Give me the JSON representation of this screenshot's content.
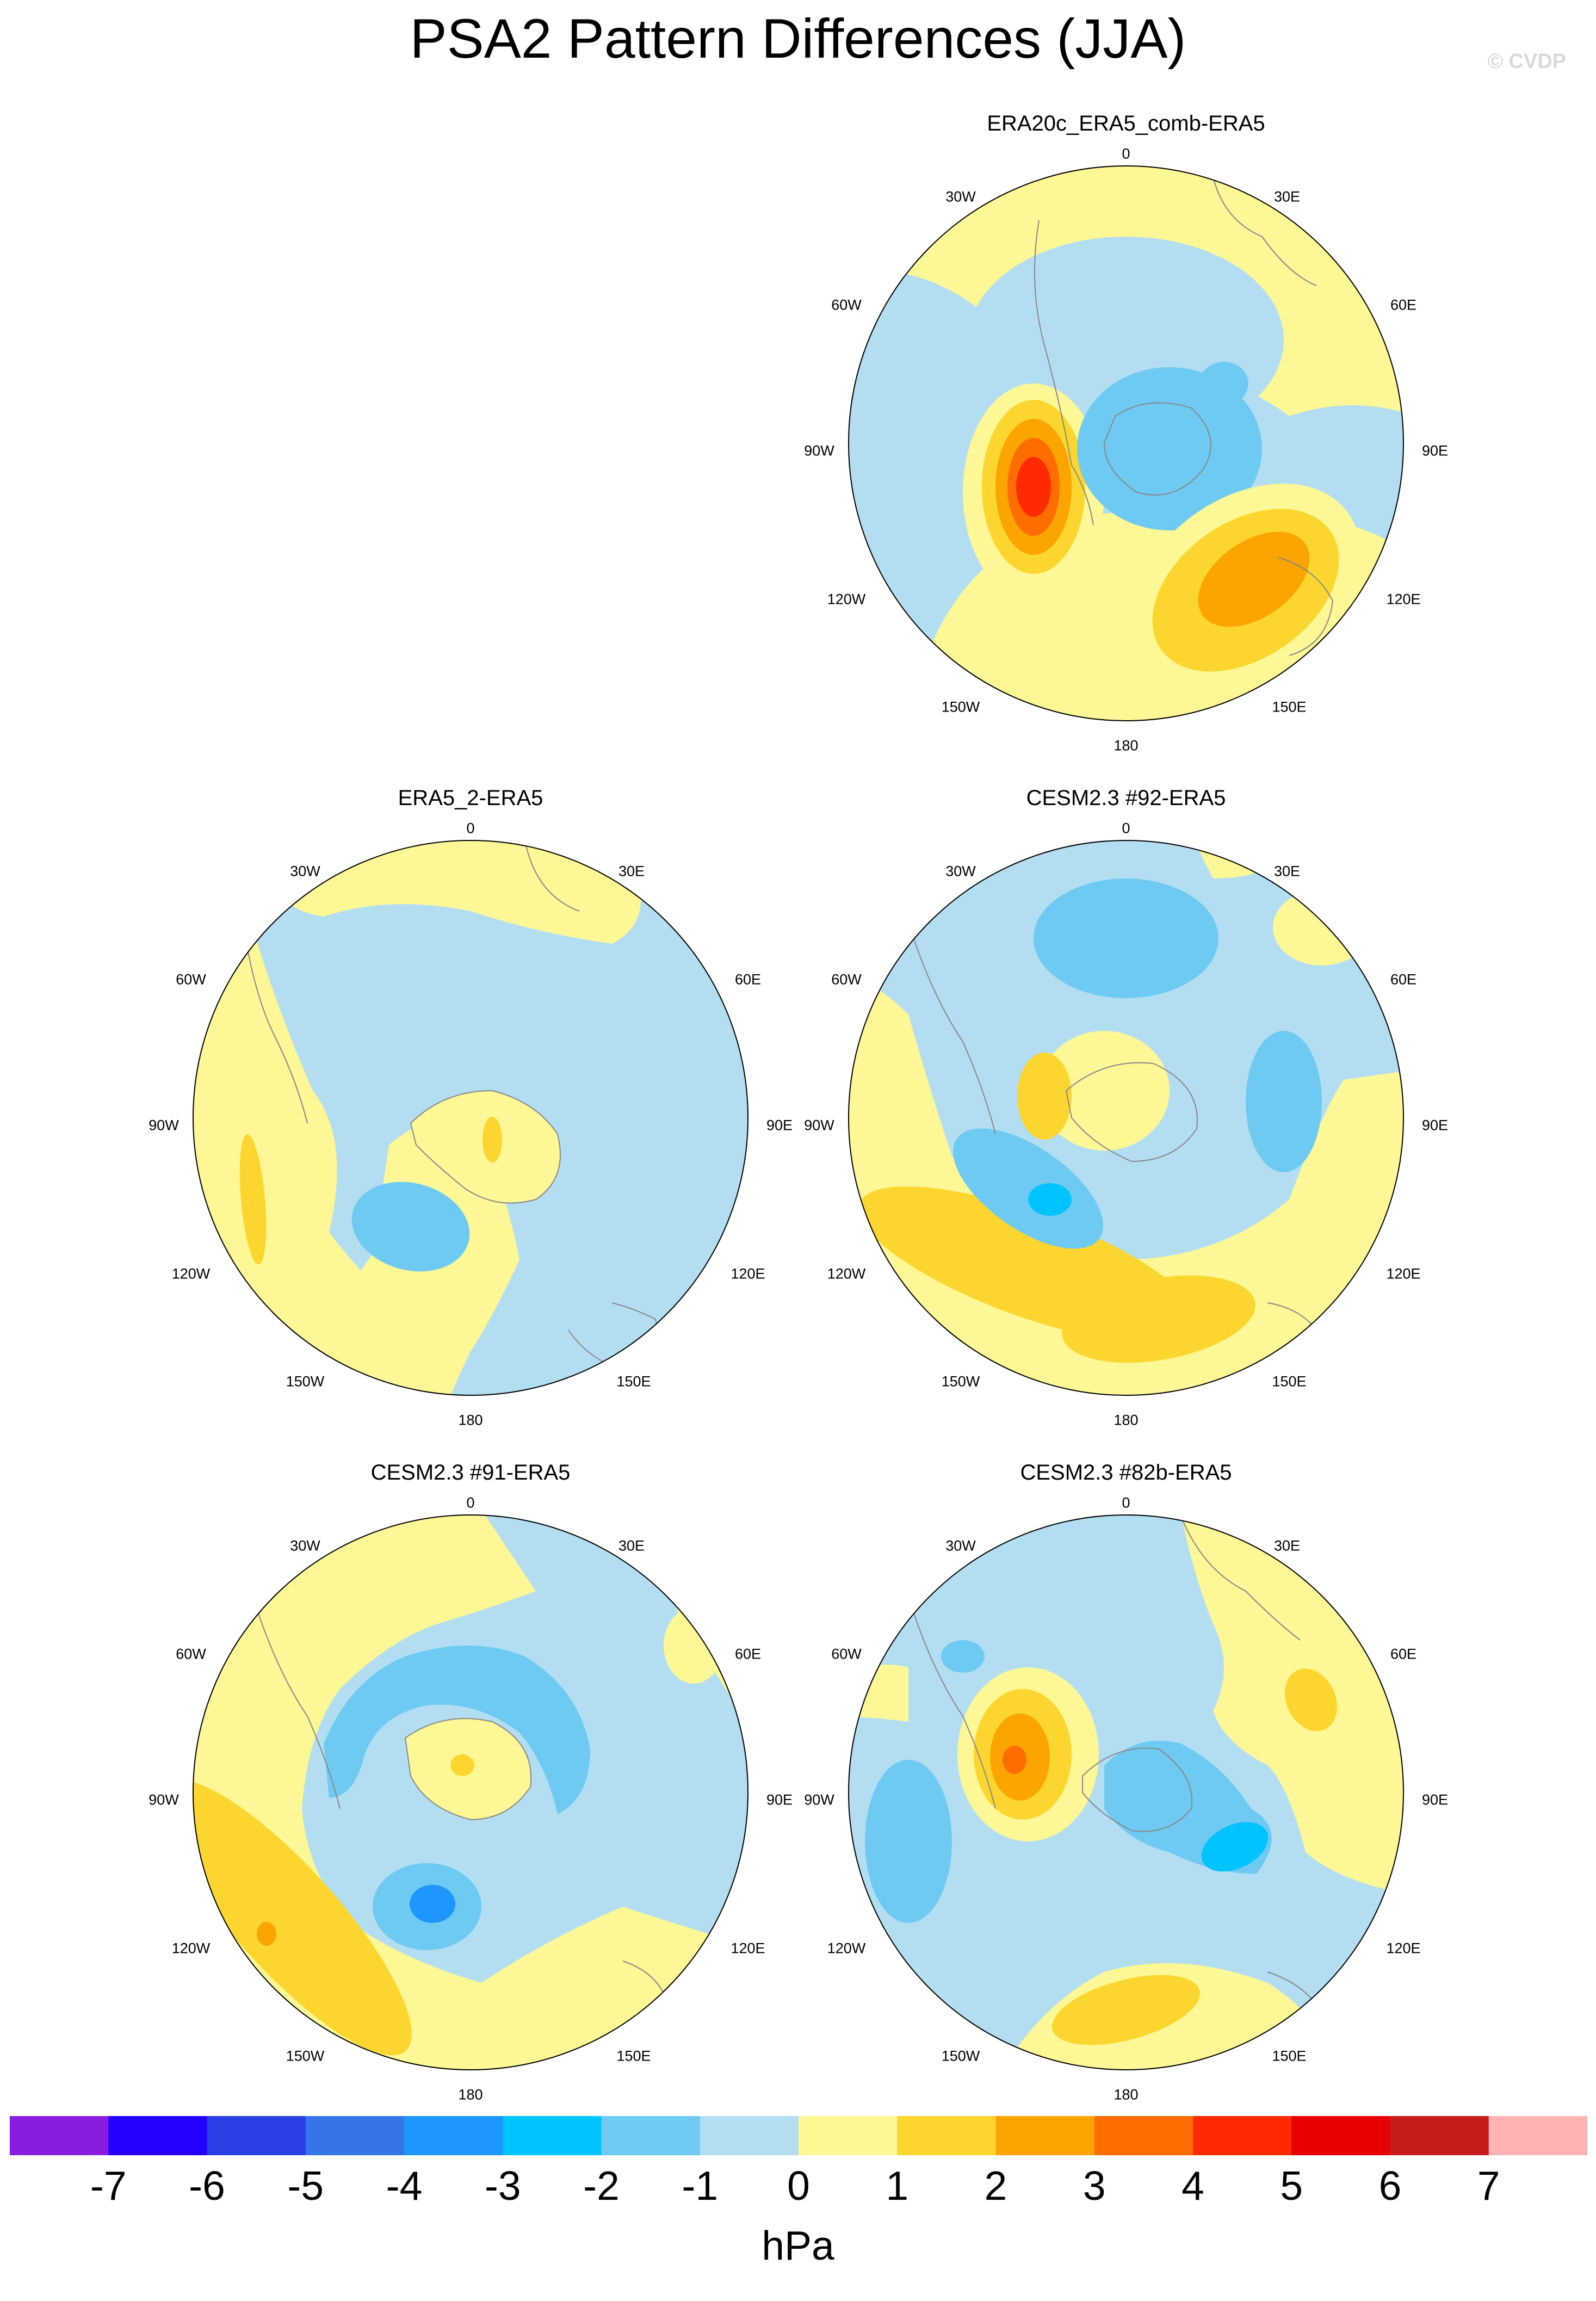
{
  "title": "PSA2 Pattern Differences (JJA)",
  "watermark": "© CVDP",
  "longitude_labels": [
    "0",
    "30E",
    "60E",
    "90E",
    "120E",
    "150E",
    "180",
    "150W",
    "120W",
    "90W",
    "60W",
    "30W"
  ],
  "panels": [
    {
      "id": "p1",
      "title": "ERA20c_ERA5_comb-ERA5",
      "background_level": "-1"
    },
    {
      "id": "p2",
      "title": "ERA5_2-ERA5",
      "background_level": "-1"
    },
    {
      "id": "p3",
      "title": "CESM2.3 #92-ERA5",
      "background_level": "-1"
    },
    {
      "id": "p4",
      "title": "CESM2.3 #91-ERA5",
      "background_level": "-1"
    },
    {
      "id": "p5",
      "title": "CESM2.3 #82b-ERA5",
      "background_level": "-1"
    }
  ],
  "colorbar": {
    "ticks": [
      "-7",
      "-6",
      "-5",
      "-4",
      "-3",
      "-2",
      "-1",
      "0",
      "1",
      "2",
      "3",
      "4",
      "5",
      "6",
      "7"
    ],
    "colors": [
      "#8a1ce0",
      "#2400ff",
      "#2a3fe6",
      "#3575e8",
      "#1e96ff",
      "#00c4ff",
      "#6ecaf2",
      "#b3def2",
      "#fdf795",
      "#fcd62e",
      "#fca400",
      "#fd6d00",
      "#ff2a00",
      "#e80000",
      "#c81c1c",
      "#ffb3b3"
    ],
    "unit": "hPa"
  }
}
